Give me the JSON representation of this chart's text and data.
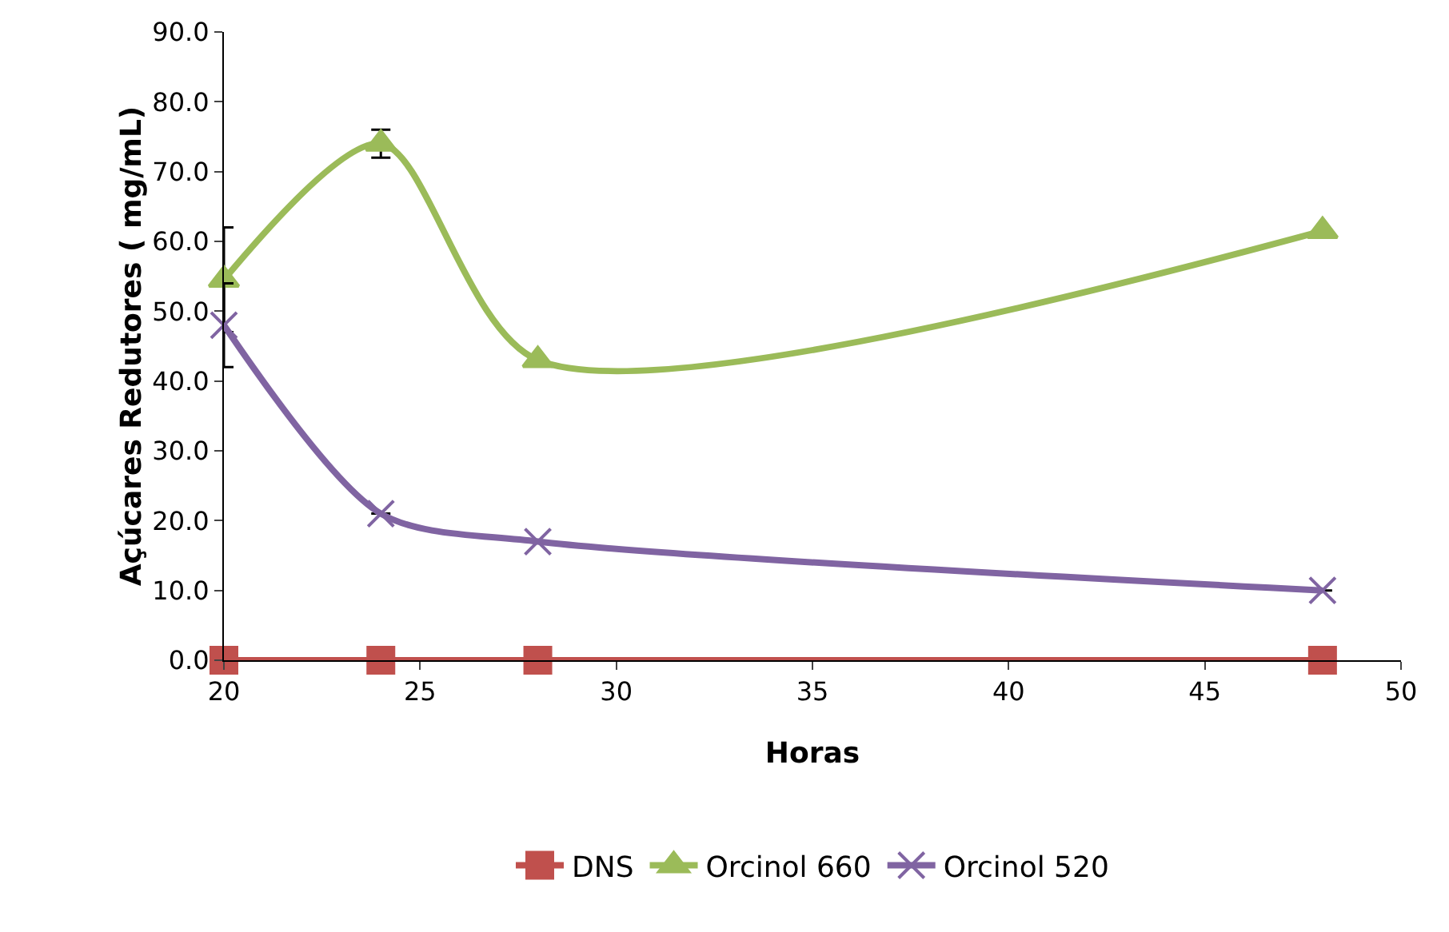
{
  "chart_data": {
    "type": "line",
    "xlabel": "Horas",
    "ylabel": "Açúcares Redutores ( mg/mL)",
    "x": [
      20,
      24,
      28,
      48
    ],
    "series": [
      {
        "name": "DNS",
        "color": "#c0504d",
        "marker": "square",
        "values": [
          0,
          0,
          0,
          0
        ]
      },
      {
        "name": "Orcinol 660",
        "color": "#9bbb59",
        "marker": "triangle",
        "values": [
          54.5,
          74,
          43,
          61.5
        ],
        "errors": [
          7.5,
          2,
          null,
          null
        ]
      },
      {
        "name": "Orcinol 520",
        "color": "#8064a2",
        "marker": "cross",
        "values": [
          48,
          21,
          17,
          10
        ],
        "errors": [
          6,
          null,
          null,
          null
        ]
      }
    ],
    "xlim": [
      20,
      50
    ],
    "xticks": [
      20,
      25,
      30,
      35,
      40,
      45,
      50
    ],
    "ylim": [
      0,
      90
    ],
    "yticks": [
      {
        "value": 0,
        "label": "0.0"
      },
      {
        "value": 10,
        "label": "10.0"
      },
      {
        "value": 20,
        "label": "20.0"
      },
      {
        "value": 30,
        "label": "30.0"
      },
      {
        "value": 40,
        "label": "40.0"
      },
      {
        "value": 50,
        "label": "50.0"
      },
      {
        "value": 60,
        "label": "60.0"
      },
      {
        "value": 70,
        "label": "70.0"
      },
      {
        "value": 80,
        "label": "80.0"
      },
      {
        "value": 90,
        "label": "90.0"
      }
    ],
    "grid": false,
    "legend": "bottom",
    "line_style": "solid"
  }
}
